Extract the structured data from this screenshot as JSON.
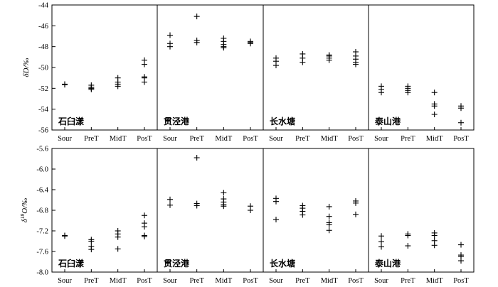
{
  "chart_data": [
    {
      "type": "scatter",
      "ylabel": "δD/‰",
      "ylim": [
        -56,
        -44
      ],
      "yticks": [
        "-44",
        "-46",
        "-48",
        "-50",
        "-52",
        "-54",
        "-56"
      ],
      "categories": [
        "Sour",
        "PreT",
        "MidT",
        "PosT"
      ],
      "panels": [
        {
          "site": "石臼漾",
          "points": {
            "Sour": [
              -51.6,
              -51.65
            ],
            "PreT": [
              -51.7,
              -51.9,
              -52.0,
              -52.1
            ],
            "MidT": [
              -51.0,
              -51.4,
              -51.6,
              -51.8
            ],
            "PosT": [
              -49.3,
              -49.7,
              -50.9,
              -51.0,
              -51.4
            ]
          }
        },
        {
          "site": "贯泾港",
          "points": {
            "Sour": [
              -46.9,
              -47.7,
              -48.0
            ],
            "PreT": [
              -45.1,
              -47.4,
              -47.6
            ],
            "MidT": [
              -47.2,
              -47.5,
              -47.8,
              -48.0,
              -48.1
            ],
            "PosT": [
              -47.5,
              -47.6,
              -47.7
            ]
          }
        },
        {
          "site": "长水塘",
          "points": {
            "Sour": [
              -49.1,
              -49.4,
              -49.8
            ],
            "PreT": [
              -48.7,
              -49.1,
              -49.5
            ],
            "MidT": [
              -48.8,
              -48.9,
              -49.1,
              -49.3
            ],
            "PosT": [
              -48.5,
              -48.9,
              -49.2,
              -49.5,
              -49.7
            ]
          }
        },
        {
          "site": "泰山港",
          "points": {
            "Sour": [
              -51.8,
              -52.1,
              -52.4
            ],
            "PreT": [
              -51.8,
              -52.0,
              -52.2,
              -52.4
            ],
            "MidT": [
              -52.4,
              -53.5,
              -53.7,
              -54.5
            ],
            "PosT": [
              -53.7,
              -53.9,
              -55.3
            ]
          }
        }
      ]
    },
    {
      "type": "scatter",
      "ylabel": "δ18O/‰",
      "ylim": [
        -8.0,
        -5.6
      ],
      "yticks": [
        "-5.6",
        "-6.0",
        "-6.4",
        "-6.8",
        "-7.2",
        "-7.6",
        "-8.0"
      ],
      "categories": [
        "Sour",
        "PreT",
        "MidT",
        "PosT"
      ],
      "panels": [
        {
          "site": "石臼漾",
          "points": {
            "Sour": [
              -7.29,
              -7.3
            ],
            "PreT": [
              -7.37,
              -7.4,
              -7.5,
              -7.56
            ],
            "MidT": [
              -7.2,
              -7.26,
              -7.32,
              -7.55
            ],
            "PosT": [
              -6.9,
              -7.05,
              -7.12,
              -7.29,
              -7.31
            ]
          }
        },
        {
          "site": "贯泾港",
          "points": {
            "Sour": [
              -6.59,
              -6.7
            ],
            "PreT": [
              -5.78,
              -6.67,
              -6.71
            ],
            "MidT": [
              -6.46,
              -6.58,
              -6.64,
              -6.69,
              -6.72
            ],
            "PosT": [
              -6.72,
              -6.8
            ]
          }
        },
        {
          "site": "长水塘",
          "points": {
            "Sour": [
              -6.57,
              -6.63,
              -6.98
            ],
            "PreT": [
              -6.71,
              -6.76,
              -6.82,
              -6.89
            ],
            "MidT": [
              -6.73,
              -6.92,
              -7.04,
              -7.08,
              -7.19
            ],
            "PosT": [
              -6.62,
              -6.66,
              -6.88
            ]
          }
        },
        {
          "site": "泰山港",
          "points": {
            "Sour": [
              -7.3,
              -7.41,
              -7.51
            ],
            "PreT": [
              -7.26,
              -7.29,
              -7.49
            ],
            "MidT": [
              -7.24,
              -7.29,
              -7.39,
              -7.48
            ],
            "PosT": [
              -7.47,
              -7.67,
              -7.7,
              -7.78
            ]
          }
        }
      ]
    }
  ]
}
